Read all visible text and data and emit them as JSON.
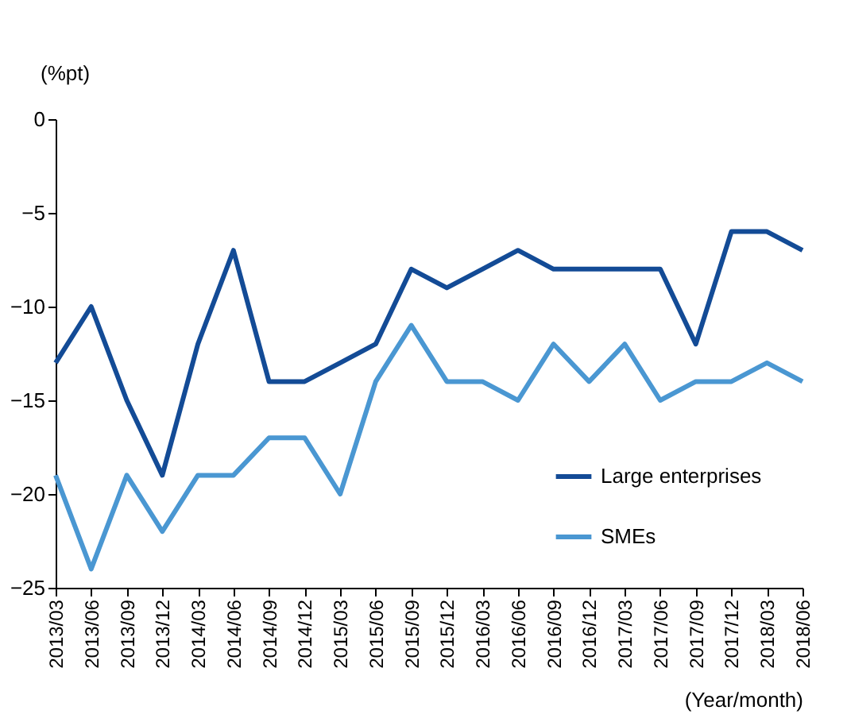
{
  "chart_data": {
    "type": "line",
    "ylabel": "(%pt)",
    "xlabel": "(Year/month)",
    "categories": [
      "2013/03",
      "2013/06",
      "2013/09",
      "2013/12",
      "2014/03",
      "2014/06",
      "2014/09",
      "2014/12",
      "2015/03",
      "2015/06",
      "2015/09",
      "2015/12",
      "2016/03",
      "2016/06",
      "2016/09",
      "2016/12",
      "2017/03",
      "2017/06",
      "2017/09",
      "2017/12",
      "2018/03",
      "2018/06"
    ],
    "series": [
      {
        "name": "Large enterprises",
        "color": "#134b96",
        "values": [
          -13,
          -10,
          -15,
          -19,
          -12,
          -7,
          -14,
          -14,
          -13,
          -12,
          -8,
          -9,
          -8,
          -7,
          -8,
          -8,
          -8,
          -8,
          -12,
          -6,
          -6,
          -7
        ]
      },
      {
        "name": "SMEs",
        "color": "#4a97d2",
        "values": [
          -19,
          -24,
          -19,
          -22,
          -19,
          -19,
          -17,
          -17,
          -20,
          -14,
          -11,
          -14,
          -14,
          -15,
          -12,
          -14,
          -12,
          -15,
          -14,
          -14,
          -13,
          -14
        ]
      }
    ],
    "ylim": [
      -25,
      0
    ],
    "yticks": [
      0,
      -5,
      -10,
      -15,
      -20,
      -25
    ],
    "grid": false,
    "legend": "bottom right",
    "marker": "none",
    "line_style": "solid"
  }
}
